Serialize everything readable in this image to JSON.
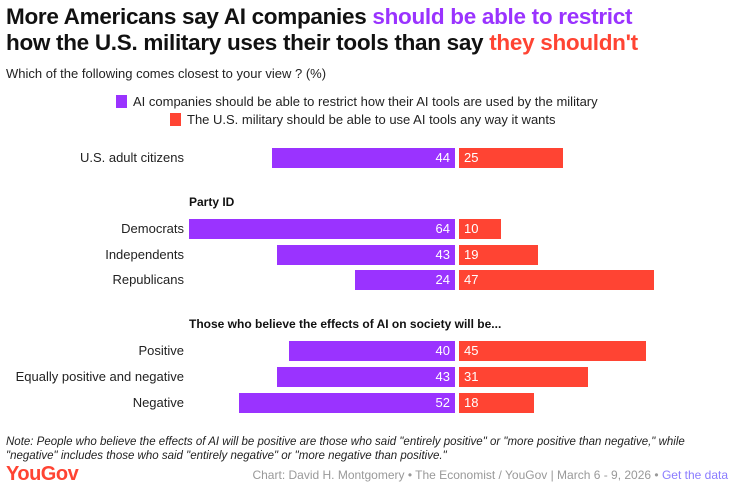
{
  "title": {
    "part1": "More Americans say AI companies ",
    "part2": "should be able to restrict",
    "part3": "how the U.S. military uses their tools than say ",
    "part4": "they shouldn't"
  },
  "subtitle": "Which of the following comes closest to your view ? (%)",
  "colors": {
    "restrict": "#9a33ff",
    "military": "#ff4433"
  },
  "chart_data": {
    "type": "bar",
    "orientation": "diverging-horizontal",
    "series": [
      {
        "name": "AI companies should be able to restrict how their AI tools are used by the military",
        "values": [
          44,
          64,
          43,
          24,
          40,
          43,
          52
        ]
      },
      {
        "name": "The U.S. military should be able to use AI tools any way it wants",
        "values": [
          25,
          10,
          19,
          47,
          45,
          31,
          18
        ]
      }
    ],
    "categories": [
      "U.S. adult citizens",
      "Democrats",
      "Independents",
      "Republicans",
      "Positive",
      "Equally positive and negative",
      "Negative"
    ],
    "groups": [
      "Party ID",
      "Those who believe the effects of AI on society will be..."
    ],
    "legend": "top-center"
  },
  "note": "Note: People who believe the effects of AI will be positive are those who said \"entirely positive\" or \"more positive than negative,\" while \"negative\" includes those who said \"entirely negative\" or \"more negative than positive.\"",
  "footer": {
    "logo": "YouGov",
    "credit": "Chart: David H. Montgomery • The Economist / YouGov | March 6 - 9, 2026 • ",
    "link": "Get the data"
  }
}
